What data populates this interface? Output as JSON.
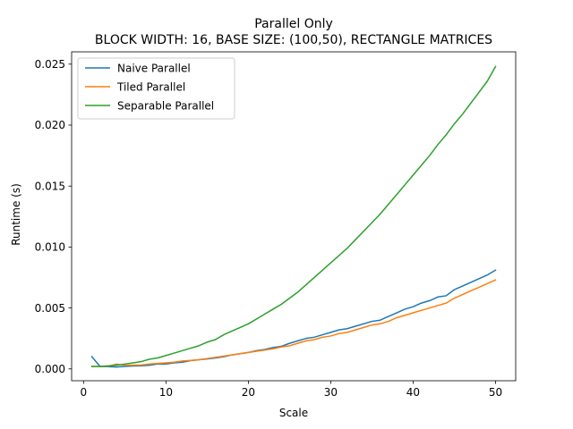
{
  "chart_data": {
    "type": "line",
    "title": "Parallel Only",
    "subtitle": "BLOCK WIDTH: 16, BASE SIZE: (100,50), RECTANGLE MATRICES",
    "xlabel": "Scale",
    "ylabel": "Runtime (s)",
    "xlim": [
      -1.45,
      52.45
    ],
    "ylim": [
      -0.00097,
      0.02601
    ],
    "xticks": [
      0,
      10,
      20,
      30,
      40,
      50
    ],
    "xtick_labels": [
      "0",
      "10",
      "20",
      "30",
      "40",
      "50"
    ],
    "yticks": [
      0.0,
      0.005,
      0.01,
      0.015,
      0.02,
      0.025
    ],
    "ytick_labels": [
      "0.000",
      "0.005",
      "0.010",
      "0.015",
      "0.020",
      "0.025"
    ],
    "grid": false,
    "legend_position": "upper-left",
    "x": [
      1,
      2,
      3,
      4,
      5,
      6,
      7,
      8,
      9,
      10,
      11,
      12,
      13,
      14,
      15,
      16,
      17,
      18,
      19,
      20,
      21,
      22,
      23,
      24,
      25,
      26,
      27,
      28,
      29,
      30,
      31,
      32,
      33,
      34,
      35,
      36,
      37,
      38,
      39,
      40,
      41,
      42,
      43,
      44,
      45,
      46,
      47,
      48,
      49,
      50
    ],
    "series": [
      {
        "name": "Naive Parallel",
        "color": "#1f77b4",
        "values": [
          0.001,
          0.0002,
          0.00018,
          0.00016,
          0.0002,
          0.00024,
          0.00026,
          0.0003,
          0.0004,
          0.0004,
          0.0005,
          0.00055,
          0.00068,
          0.00075,
          0.00082,
          0.0009,
          0.001,
          0.00115,
          0.00125,
          0.00135,
          0.0015,
          0.0016,
          0.00175,
          0.00185,
          0.0021,
          0.0023,
          0.0025,
          0.0026,
          0.0028,
          0.003,
          0.0032,
          0.0033,
          0.0035,
          0.0037,
          0.0039,
          0.004,
          0.0043,
          0.0046,
          0.0049,
          0.0051,
          0.0054,
          0.0056,
          0.0059,
          0.006,
          0.0065,
          0.0068,
          0.0071,
          0.0074,
          0.0077,
          0.0081
        ]
      },
      {
        "name": "Tiled Parallel",
        "color": "#ff7f0e",
        "values": [
          0.0002,
          0.0002,
          0.00022,
          0.0004,
          0.0003,
          0.0003,
          0.00032,
          0.0004,
          0.00045,
          0.0005,
          0.00055,
          0.00065,
          0.0007,
          0.00075,
          0.00085,
          0.00095,
          0.00105,
          0.00115,
          0.00125,
          0.00135,
          0.00145,
          0.00155,
          0.00165,
          0.0018,
          0.0019,
          0.0021,
          0.0023,
          0.0024,
          0.0026,
          0.0027,
          0.0029,
          0.003,
          0.0032,
          0.0034,
          0.0036,
          0.0037,
          0.0039,
          0.0042,
          0.0044,
          0.0046,
          0.0048,
          0.005,
          0.0052,
          0.0054,
          0.0058,
          0.0061,
          0.0064,
          0.0067,
          0.007,
          0.0073
        ]
      },
      {
        "name": "Separable Parallel",
        "color": "#2ca02c",
        "values": [
          0.0002,
          0.0002,
          0.00025,
          0.0003,
          0.0004,
          0.0005,
          0.0006,
          0.0008,
          0.0009,
          0.0011,
          0.0013,
          0.0015,
          0.0017,
          0.0019,
          0.0022,
          0.0024,
          0.0028,
          0.0031,
          0.0034,
          0.0037,
          0.0041,
          0.0045,
          0.0049,
          0.0053,
          0.0058,
          0.0063,
          0.0069,
          0.0075,
          0.0081,
          0.0087,
          0.0093,
          0.0099,
          0.0106,
          0.0113,
          0.012,
          0.0127,
          0.0135,
          0.0143,
          0.0151,
          0.0159,
          0.0167,
          0.0175,
          0.0184,
          0.0192,
          0.0201,
          0.0209,
          0.0218,
          0.0227,
          0.0236,
          0.0248
        ]
      }
    ]
  }
}
